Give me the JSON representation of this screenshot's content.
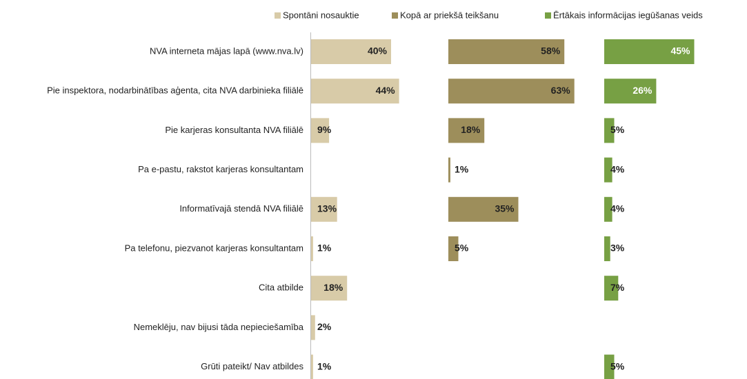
{
  "chart_data": {
    "type": "bar",
    "orientation": "horizontal",
    "categories": [
      "NVA interneta mājas lapā (www.nva.lv)",
      "Pie inspektora, nodarbinātības aģenta, cita NVA darbinieka filiālē",
      "Pie karjeras konsultanta NVA filiālē",
      "Pa e-pastu, rakstot karjeras konsultantam",
      "Informatīvajā stendā NVA filiālē",
      "Pa telefonu, piezvanot karjeras konsultantam",
      "Cita atbilde",
      "Nemeklēju, nav bijusi tāda nepieciešamība",
      "Grūti pateikt/ Nav atbildes"
    ],
    "series": [
      {
        "name": "Spontāni nosauktie",
        "color": "#d8cba8",
        "values": [
          40,
          44,
          9,
          null,
          13,
          1,
          18,
          2,
          1
        ],
        "value_labels": [
          "40%",
          "44%",
          "9%",
          null,
          "13%",
          "1%",
          "18%",
          "2%",
          "1%"
        ]
      },
      {
        "name": "Kopā ar priekšā teikšanu",
        "color": "#9d8e5b",
        "values": [
          58,
          63,
          18,
          1,
          35,
          5,
          null,
          null,
          null
        ],
        "value_labels": [
          "58%",
          "63%",
          "18%",
          "1%",
          "35%",
          "5%",
          null,
          null,
          null
        ]
      },
      {
        "name": "Ērtākais informācijas iegūšanas veids",
        "color": "#77a044",
        "values": [
          45,
          26,
          5,
          4,
          4,
          3,
          7,
          null,
          5
        ],
        "value_labels": [
          "45%",
          "26%",
          "5%",
          "4%",
          "4%",
          "3%",
          "7%",
          null,
          "5%"
        ]
      }
    ]
  }
}
